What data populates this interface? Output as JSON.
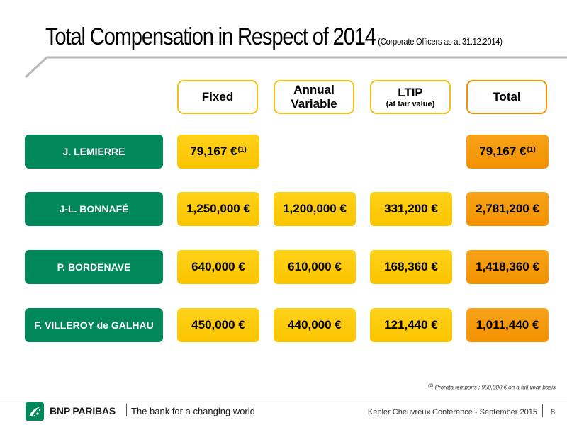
{
  "title": {
    "main": "Total Compensation in Respect of 2014",
    "sub": "(Corporate Officers as at 31.12.2014)"
  },
  "columns": [
    {
      "line1": "Fixed",
      "line2": "",
      "small": ""
    },
    {
      "line1": "Annual",
      "line2": "Variable",
      "small": ""
    },
    {
      "line1": "LTIP",
      "line2": "",
      "small": "(at fair value)"
    },
    {
      "line1": "Total",
      "line2": "",
      "small": ""
    }
  ],
  "rows": [
    {
      "name": "J. LEMIERRE",
      "fixed": "79,167 €",
      "fixed_sup": "(1)",
      "variable": "",
      "ltip": "",
      "total": "79,167 €",
      "total_sup": "(1)"
    },
    {
      "name": "J-L. BONNAFÉ",
      "fixed": "1,250,000 €",
      "fixed_sup": "",
      "variable": "1,200,000 €",
      "ltip": "331,200 €",
      "total": "2,781,200 €",
      "total_sup": ""
    },
    {
      "name": "P. BORDENAVE",
      "fixed": "640,000 €",
      "fixed_sup": "",
      "variable": "610,000 €",
      "ltip": "168,360 €",
      "total": "1,418,360 €",
      "total_sup": ""
    },
    {
      "name": "F. VILLEROY de GALHAU",
      "fixed": "450,000 €",
      "fixed_sup": "",
      "variable": "440,000 €",
      "ltip": "121,440 €",
      "total": "1,011,440 €",
      "total_sup": ""
    }
  ],
  "footnote": {
    "marker": "(1)",
    "text": "Prorata temporis ; 950,000 € on a full year basis"
  },
  "footer": {
    "brand": "BNP PARIBAS",
    "tagline": "The bank for a changing world",
    "conference": "Kepler Cheuvreux Conference - September 2015",
    "page": "8"
  },
  "colors": {
    "green": "#00875a",
    "yellow": "#fbc400",
    "orange": "#f39200"
  }
}
